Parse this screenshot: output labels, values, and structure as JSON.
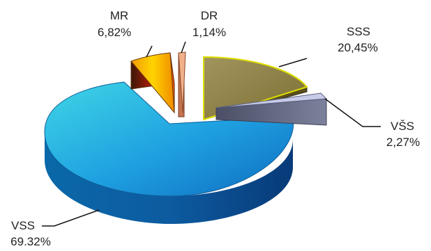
{
  "chart_data": {
    "type": "pie",
    "style": "3d-exploded",
    "title": "",
    "slices": [
      {
        "category": "SSS",
        "label": "20,45%",
        "value": 20.45,
        "color": "#8a7c3a"
      },
      {
        "category": "VŠS",
        "label": "2,27%",
        "value": 2.27,
        "color": "#6a6e86"
      },
      {
        "category": "VSS",
        "label": "69.32%",
        "value": 69.32,
        "color": "#1aa2df"
      },
      {
        "category": "MR",
        "label": "6,82%",
        "value": 6.82,
        "color": "#e07a10"
      },
      {
        "category": "DR",
        "label": "1,14%",
        "value": 1.14,
        "color": "#e8a57a"
      }
    ]
  }
}
